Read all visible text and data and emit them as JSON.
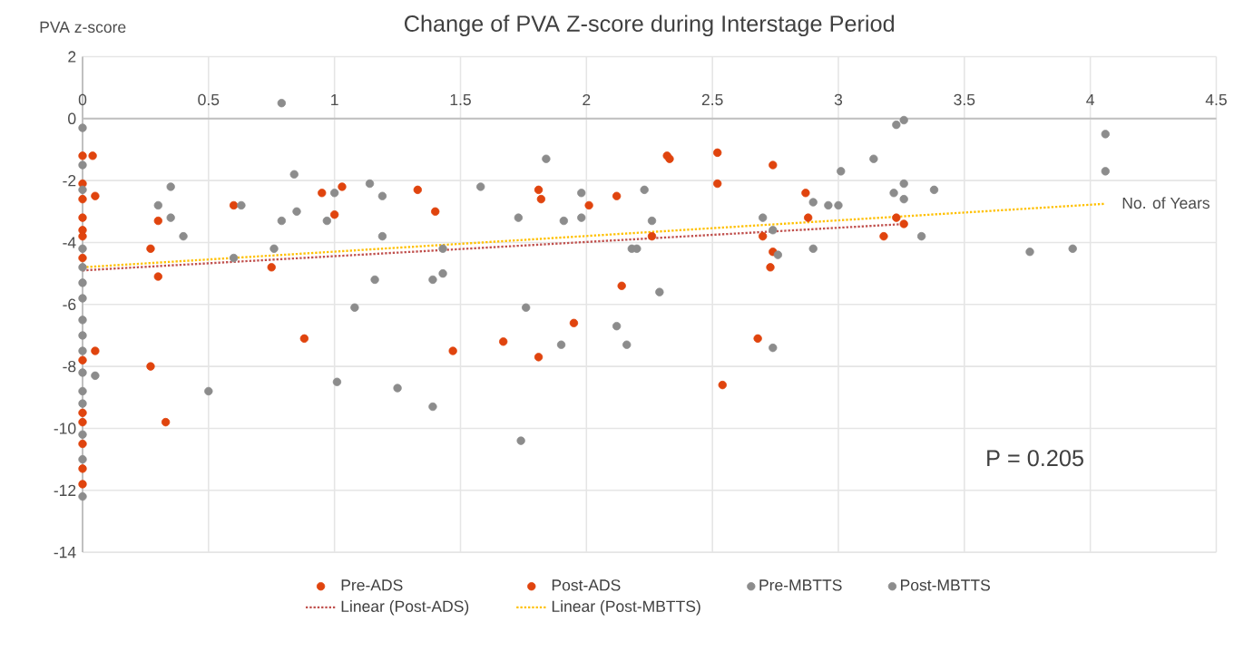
{
  "chart_data": {
    "type": "scatter",
    "title": "Change of PVA Z-score during Interstage Period",
    "xlabel": "No. of Years",
    "ylabel": "PVA z-score",
    "xlim": [
      0,
      4.5
    ],
    "xticks": [
      0,
      0.5,
      1,
      1.5,
      2,
      2.5,
      3,
      3.5,
      4,
      4.5
    ],
    "ylim": [
      -14,
      2
    ],
    "yticks": [
      -14,
      -12,
      -10,
      -8,
      -6,
      -4,
      -2,
      0,
      2
    ],
    "grid": true,
    "legend": "bottom",
    "annotations": [
      "P = 0.205"
    ],
    "series": [
      {
        "name": "Pre-ADS",
        "color": "#e0440e",
        "x": [
          0,
          0,
          0,
          0,
          0,
          0,
          0,
          0,
          0,
          0,
          0,
          0,
          0
        ],
        "values": [
          -1.2,
          -2.1,
          -2.6,
          -3.2,
          -3.6,
          -3.8,
          -4.5,
          -7.8,
          -9.5,
          -9.8,
          -10.5,
          -11.3,
          -11.8
        ]
      },
      {
        "name": "Post-ADS",
        "color": "#e0440e",
        "x": [
          0.05,
          0.04,
          0.27,
          0.3,
          0.3,
          0.6,
          0.75,
          0.95,
          1.0,
          1.03,
          1.33,
          1.4,
          1.81,
          1.82,
          2.01,
          2.12,
          2.14,
          1.95,
          1.67,
          0.88,
          0.05,
          0.27,
          0.33,
          1.47,
          1.81,
          2.32,
          2.33,
          2.52,
          2.52,
          2.74,
          2.87,
          2.88,
          2.26,
          2.7,
          2.74,
          2.73,
          3.18,
          3.23,
          3.26,
          2.68,
          2.54
        ],
        "values": [
          -2.5,
          -1.2,
          -4.2,
          -5.1,
          -3.3,
          -2.8,
          -4.8,
          -2.4,
          -3.1,
          -2.2,
          -2.3,
          -3.0,
          -2.3,
          -2.6,
          -2.8,
          -2.5,
          -5.4,
          -6.6,
          -7.2,
          -7.1,
          -7.5,
          -8.0,
          -9.8,
          -7.5,
          -7.7,
          -1.2,
          -1.3,
          -1.1,
          -2.1,
          -1.5,
          -2.4,
          -3.2,
          -3.8,
          -3.8,
          -4.3,
          -4.8,
          -3.8,
          -3.2,
          -3.4,
          -7.1,
          -8.6
        ]
      },
      {
        "name": "Pre-MBTTS",
        "color": "#8c8c8c",
        "x": [
          0,
          0,
          0,
          0,
          0,
          0,
          0,
          0,
          0,
          0,
          0,
          0,
          0,
          0,
          0,
          0
        ],
        "values": [
          -0.3,
          -1.5,
          -2.3,
          -4.2,
          -4.8,
          -5.3,
          -5.8,
          -6.5,
          -7.0,
          -7.5,
          -8.2,
          -8.8,
          -9.2,
          -10.2,
          -11.0,
          -12.2
        ]
      },
      {
        "name": "Post-MBTTS",
        "color": "#8c8c8c",
        "x": [
          0.79,
          0.3,
          0.35,
          0.35,
          0.4,
          0.63,
          0.6,
          0.76,
          0.79,
          0.84,
          0.85,
          0.97,
          1.0,
          1.08,
          1.14,
          1.19,
          1.19,
          1.16,
          1.39,
          1.43,
          1.43,
          1.58,
          1.73,
          1.76,
          1.84,
          1.91,
          1.98,
          1.98,
          2.12,
          2.18,
          0.05,
          0.5,
          1.01,
          1.25,
          1.39,
          1.74,
          1.9,
          2.16,
          2.23,
          2.26,
          2.2,
          2.29,
          3.01,
          3.14,
          3.23,
          3.26,
          3.26,
          3.22,
          3.26,
          3.38,
          2.9,
          2.96,
          3.0,
          2.7,
          2.74,
          2.76,
          2.9,
          3.33,
          3.76,
          3.93,
          4.06,
          4.06,
          2.74
        ],
        "values": [
          0.5,
          -2.8,
          -2.2,
          -3.2,
          -3.8,
          -2.8,
          -4.5,
          -4.2,
          -3.3,
          -1.8,
          -3.0,
          -3.3,
          -2.4,
          -6.1,
          -2.1,
          -2.5,
          -3.8,
          -5.2,
          -5.2,
          -4.2,
          -5.0,
          -2.2,
          -3.2,
          -6.1,
          -1.3,
          -3.3,
          -2.4,
          -3.2,
          -6.7,
          -4.2,
          -8.3,
          -8.8,
          -8.5,
          -8.7,
          -9.3,
          -10.4,
          -7.3,
          -7.3,
          -2.3,
          -3.3,
          -4.2,
          -5.6,
          -1.7,
          -1.3,
          -0.2,
          -0.05,
          -2.1,
          -2.4,
          -2.6,
          -2.3,
          -2.7,
          -2.8,
          -2.8,
          -3.2,
          -3.6,
          -4.4,
          -4.2,
          -3.8,
          -4.3,
          -4.2,
          -0.5,
          -1.7,
          -7.4
        ]
      },
      {
        "name": "Linear  (Post-ADS)",
        "type": "line",
        "line_style": "dotted",
        "color": "#c0504d",
        "x": [
          0,
          3.27
        ],
        "values": [
          -4.9,
          -3.4
        ]
      },
      {
        "name": "Linear  (Post-MBTTS)",
        "type": "line",
        "line_style": "dotted",
        "color": "#ffc000",
        "x": [
          0,
          4.06
        ],
        "values": [
          -4.8,
          -2.75
        ]
      }
    ]
  }
}
